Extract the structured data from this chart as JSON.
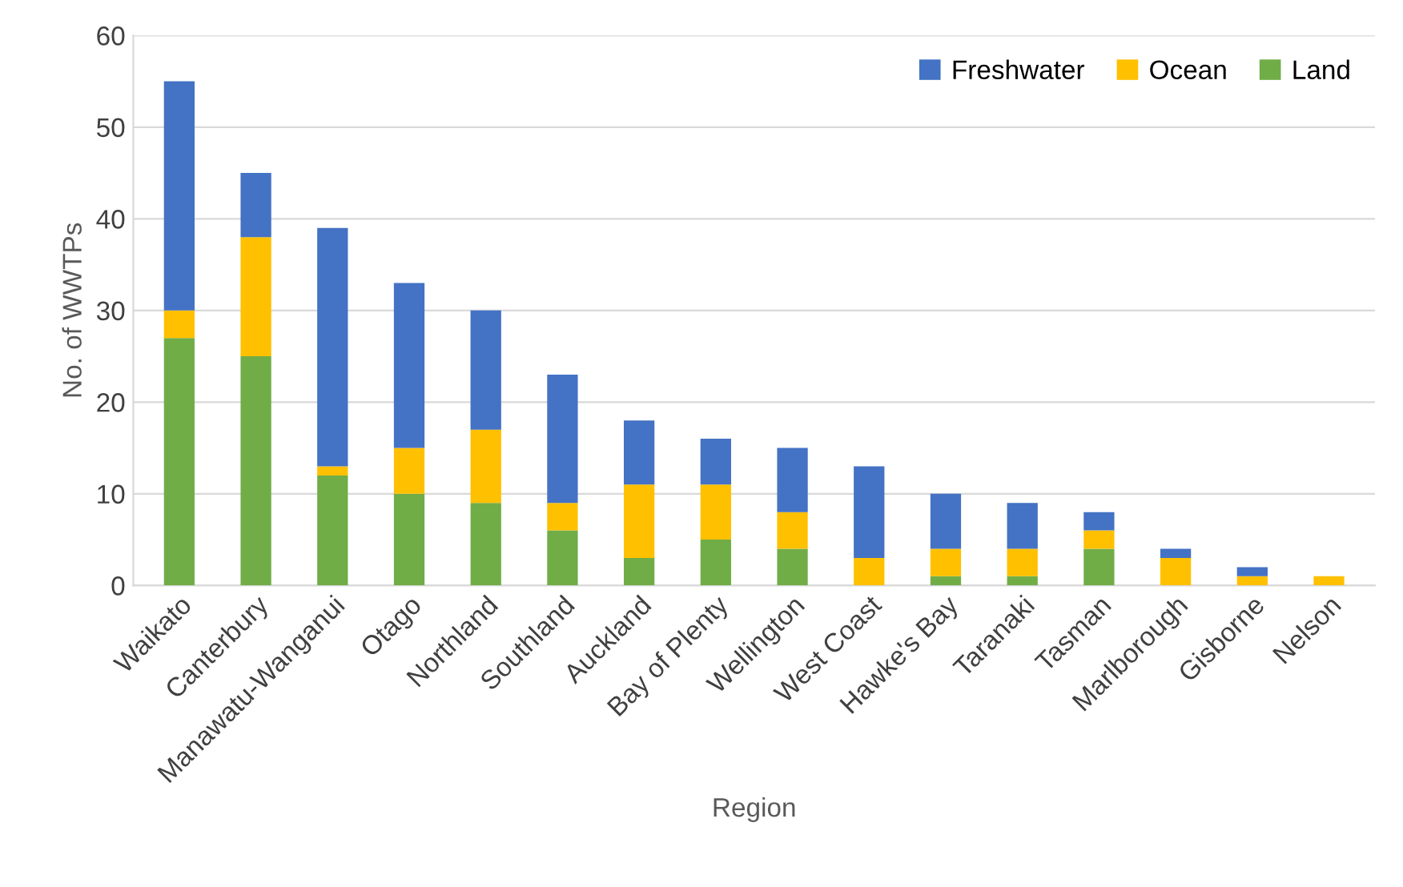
{
  "chart_data": {
    "type": "bar",
    "stacked": true,
    "xlabel": "Region",
    "ylabel": "No. of WWTPs",
    "categories": [
      "Waikato",
      "Canterbury",
      "Manawatu-Wanganui",
      "Otago",
      "Northland",
      "Southland",
      "Auckland",
      "Bay of Plenty",
      "Wellington",
      "West Coast",
      "Hawke's Bay",
      "Taranaki",
      "Tasman",
      "Marlborough",
      "Gisborne",
      "Nelson"
    ],
    "series": [
      {
        "name": "Land",
        "color": "#70ad47",
        "values": [
          27,
          25,
          12,
          10,
          9,
          6,
          3,
          5,
          4,
          0,
          1,
          1,
          4,
          0,
          0,
          0
        ]
      },
      {
        "name": "Ocean",
        "color": "#ffc000",
        "values": [
          3,
          13,
          1,
          5,
          8,
          3,
          8,
          6,
          4,
          3,
          3,
          3,
          2,
          3,
          1,
          1
        ]
      },
      {
        "name": "Freshwater",
        "color": "#4472c4",
        "values": [
          25,
          7,
          26,
          18,
          13,
          14,
          7,
          5,
          7,
          10,
          6,
          5,
          2,
          1,
          1,
          0
        ]
      }
    ],
    "ylim": [
      0,
      60
    ],
    "yticks": [
      0,
      10,
      20,
      30,
      40,
      50,
      60
    ],
    "grid": "y",
    "legend": "top right"
  }
}
